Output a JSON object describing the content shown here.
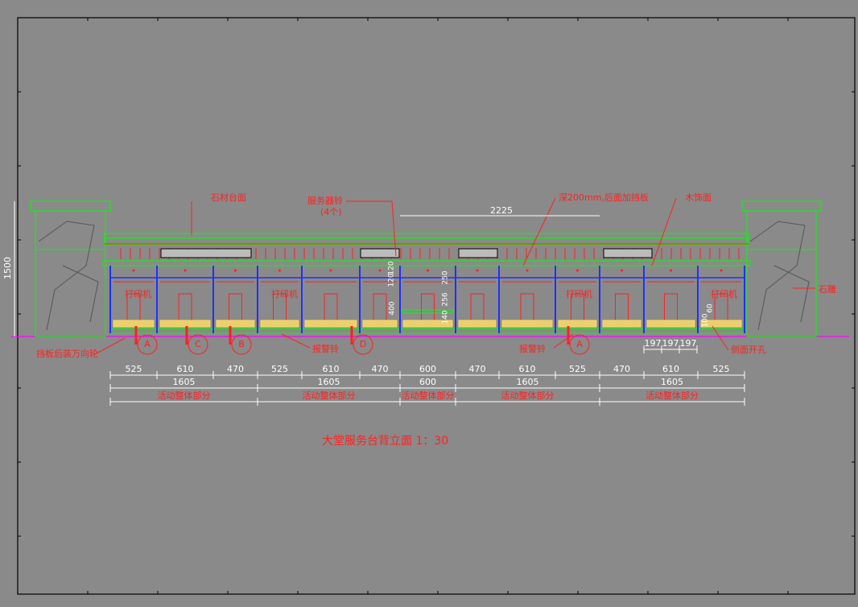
{
  "title": "大堂服务台背立面  1：30",
  "annotations": [
    "石材台面",
    "服务器铃",
    "(4个)",
    "深200mm,后面加挡板",
    "木饰面",
    "石雕",
    "挡板后装万向轮",
    "报警铃",
    "报警铃",
    "侧面开孔"
  ],
  "printer_labels": [
    "打印机",
    "打印机",
    "打印机",
    "打印机"
  ],
  "section_markers": [
    "A",
    "C",
    "B",
    "D",
    "A"
  ],
  "dimensions": {
    "overall_height": 1500,
    "top_span": 2225,
    "row1": [
      525,
      610,
      470,
      525,
      610,
      470,
      600,
      470,
      610,
      525,
      470,
      610,
      525
    ],
    "row2": [
      1605,
      1605,
      600,
      1605,
      1605
    ],
    "row3": [
      "活动整体部分",
      "活动整体部分",
      "活动整体部分",
      "活动整体部分",
      "活动整体部分"
    ],
    "side_hole": [
      197,
      197,
      197
    ],
    "vertical": [
      120,
      120,
      400,
      250,
      256,
      140,
      100,
      60
    ]
  }
}
